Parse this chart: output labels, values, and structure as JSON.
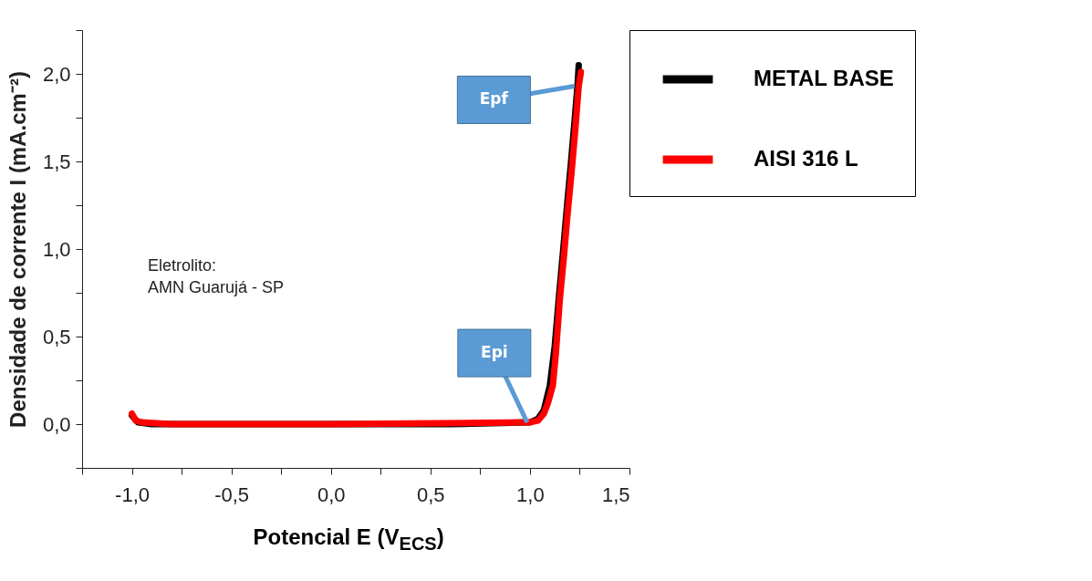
{
  "chart_data": {
    "type": "line",
    "xlabel": "Potencial E (V$_{ECS}$)",
    "ylabel": "Densidade de corrente I (mA.cm⁻²)",
    "xlim": [
      -1.25,
      1.5
    ],
    "ylim": [
      -0.25,
      2.25
    ],
    "xticks": [
      {
        "value": -1.25,
        "label": null
      },
      {
        "value": -1.0,
        "label": "-1,0"
      },
      {
        "value": -0.75,
        "label": null
      },
      {
        "value": -0.5,
        "label": "-0,5"
      },
      {
        "value": -0.25,
        "label": null
      },
      {
        "value": 0,
        "label": "0,0"
      },
      {
        "value": 0.25,
        "label": null
      },
      {
        "value": 0.5,
        "label": "0,5"
      },
      {
        "value": 0.75,
        "label": null
      },
      {
        "value": 1.0,
        "label": "1,0"
      },
      {
        "value": 1.25,
        "label": null
      },
      {
        "value": 1.5,
        "label": "1,5"
      }
    ],
    "yticks": [
      {
        "value": -0.25,
        "label": null
      },
      {
        "value": 0,
        "label": "0,0"
      },
      {
        "value": 0.25,
        "label": null
      },
      {
        "value": 0.5,
        "label": "0,5"
      },
      {
        "value": 0.75,
        "label": null
      },
      {
        "value": 1.0,
        "label": "1,0"
      },
      {
        "value": 1.25,
        "label": null
      },
      {
        "value": 1.5,
        "label": "1,5"
      },
      {
        "value": 1.75,
        "label": null
      },
      {
        "value": 2.0,
        "label": "2,0"
      },
      {
        "value": 2.25,
        "label": null
      }
    ],
    "legend": "top right",
    "series": [
      {
        "name": "METAL BASE",
        "color": "#000000",
        "x": [
          -1.0,
          -0.97,
          -0.9,
          0.6,
          1.0,
          1.04,
          1.07,
          1.1,
          1.125,
          1.145,
          1.165,
          1.185,
          1.205,
          1.225,
          1.24,
          1.245
        ],
        "values": [
          0.05,
          0.01,
          0.0,
          0.0,
          0.01,
          0.03,
          0.08,
          0.22,
          0.45,
          0.72,
          0.97,
          1.23,
          1.48,
          1.74,
          1.95,
          2.05
        ]
      },
      {
        "name": "AISI 316 L",
        "color": "#ff0000",
        "x": [
          -1.0,
          -0.98,
          -0.95,
          -0.8,
          0.0,
          1.0,
          1.04,
          1.07,
          1.09,
          1.115,
          1.13,
          1.15,
          1.17,
          1.19,
          1.21,
          1.23,
          1.245,
          1.256
        ],
        "values": [
          0.06,
          0.02,
          0.01,
          0.0,
          0.0,
          0.01,
          0.02,
          0.06,
          0.12,
          0.22,
          0.4,
          0.71,
          0.95,
          1.21,
          1.45,
          1.71,
          1.93,
          2.01
        ]
      }
    ],
    "annotations": [
      "Eletrolito:\nAMN Guarujá - SP",
      {
        "text": "Epf",
        "x": 1.222,
        "y": 1.93
      },
      {
        "text": "Epi",
        "x": 0.986,
        "y": 0.01
      }
    ]
  }
}
